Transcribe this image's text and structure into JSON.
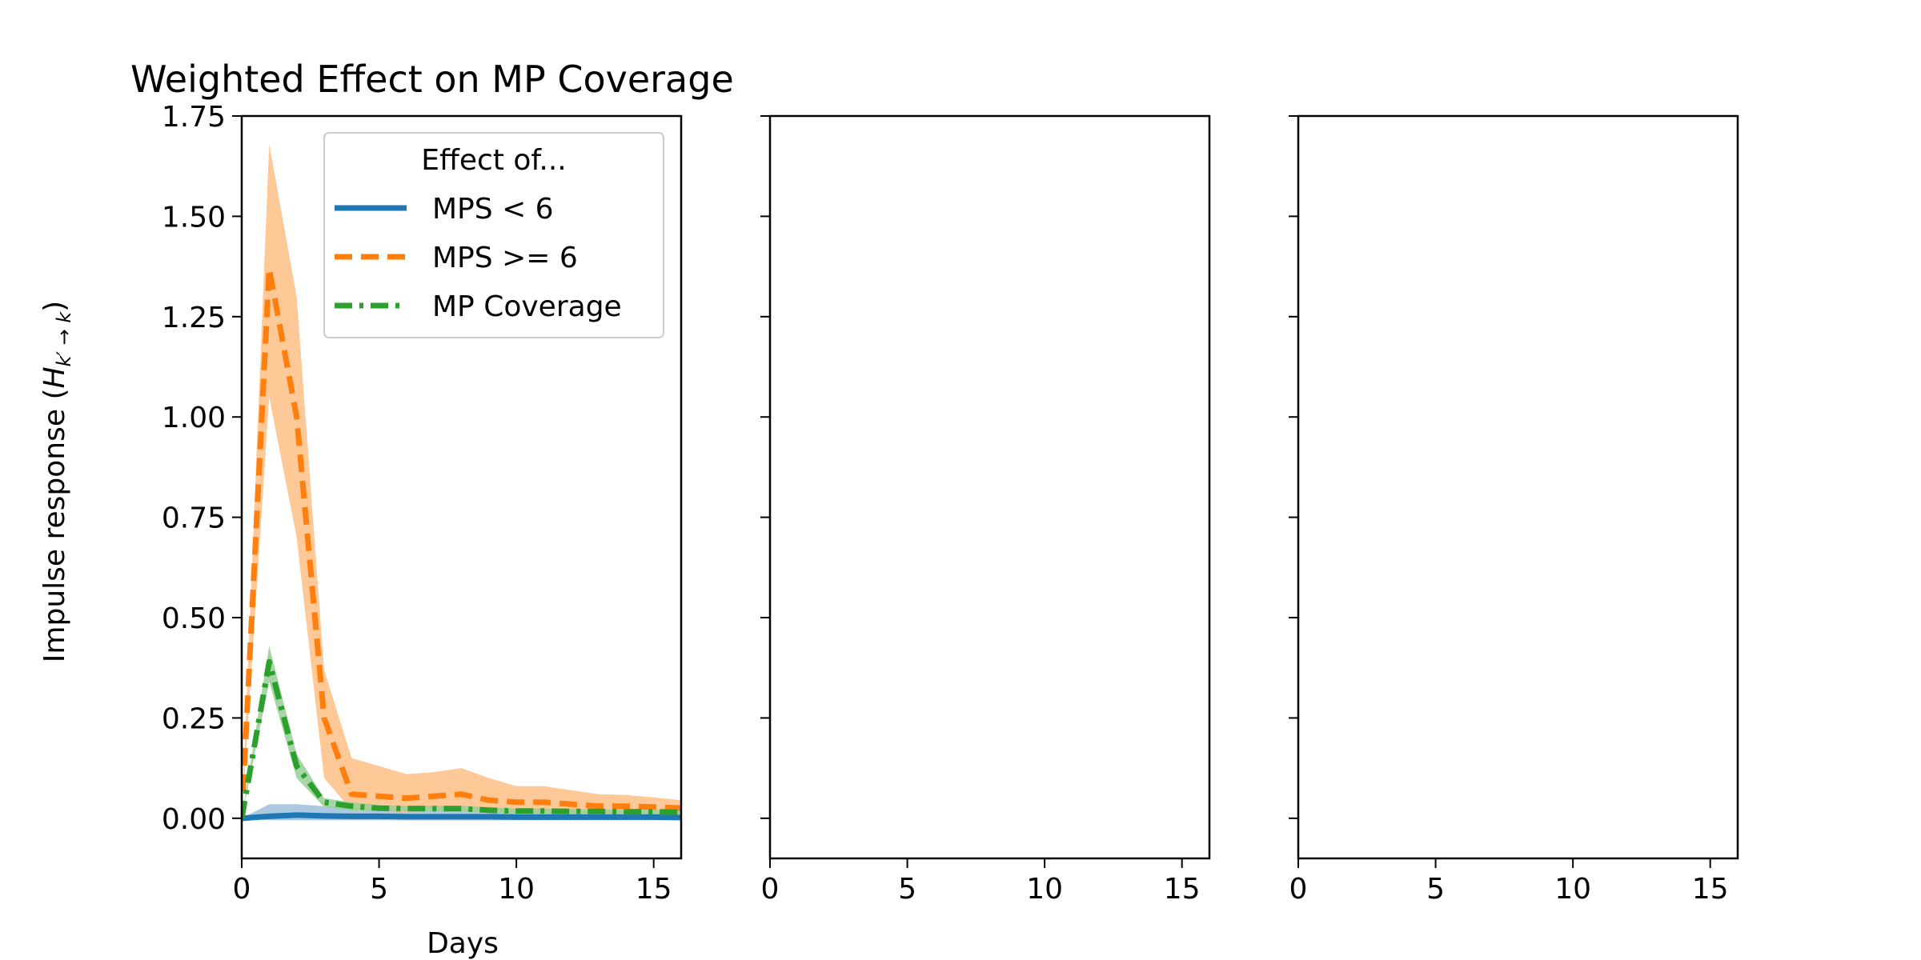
{
  "figure": {
    "ylabel_main": "Impulse response (",
    "ylabel_H": "H",
    "ylabel_sub": "k′ → k",
    "ylabel_close": ")"
  },
  "colors": {
    "blue": "#1f77b4",
    "orange": "#ff7f0e",
    "green": "#2ca02c",
    "blue_band": "#9dbfdd",
    "orange_band": "#ffbe85",
    "green_band": "#96cf96"
  },
  "chart_data": [
    {
      "type": "line",
      "title": "Weighted Effect on MP Coverage",
      "xlabel": "Days",
      "ylabel": "Impulse response (Hk′ → k)",
      "xlim": [
        0,
        16
      ],
      "ylim": [
        -0.1,
        1.75
      ],
      "xticks": [
        0,
        5,
        10,
        15
      ],
      "yticks": [
        0.0,
        0.25,
        0.5,
        0.75,
        1.0,
        1.25,
        1.5,
        1.75
      ],
      "xtick_labels": [
        "0",
        "5",
        "10",
        "15"
      ],
      "ytick_labels": [
        "0.00",
        "0.25",
        "0.50",
        "0.75",
        "1.00",
        "1.25",
        "1.50",
        "1.75"
      ],
      "grid": false,
      "legend": {
        "title": "Effect of...",
        "placement": "upper right",
        "entries": [
          "MPS < 6",
          "MPS >= 6",
          "MP Coverage"
        ]
      },
      "x": [
        0,
        1,
        2,
        3,
        4,
        5,
        6,
        7,
        8,
        9,
        10,
        11,
        12,
        13,
        14,
        15,
        16
      ],
      "series": [
        {
          "name": "MPS < 6",
          "style": "solid",
          "color": "blue",
          "values": [
            0.0,
            0.005,
            0.008,
            0.006,
            0.005,
            0.005,
            0.004,
            0.004,
            0.004,
            0.004,
            0.003,
            0.003,
            0.003,
            0.003,
            0.003,
            0.003,
            0.002
          ],
          "lower": [
            0.0,
            -0.005,
            -0.005,
            -0.005,
            -0.005,
            -0.005,
            -0.005,
            -0.005,
            -0.005,
            -0.005,
            -0.005,
            -0.005,
            -0.005,
            -0.005,
            -0.005,
            -0.005,
            -0.005
          ],
          "upper": [
            0.0,
            0.035,
            0.035,
            0.03,
            0.027,
            0.025,
            0.023,
            0.022,
            0.022,
            0.021,
            0.02,
            0.02,
            0.019,
            0.018,
            0.018,
            0.017,
            0.016
          ]
        },
        {
          "name": "MPS >= 6",
          "style": "dashed",
          "color": "orange",
          "values": [
            0.0,
            1.37,
            1.0,
            0.25,
            0.06,
            0.055,
            0.05,
            0.055,
            0.06,
            0.045,
            0.04,
            0.04,
            0.035,
            0.03,
            0.03,
            0.028,
            0.025
          ],
          "lower": [
            0.0,
            1.05,
            0.7,
            0.1,
            0.02,
            0.018,
            0.015,
            0.018,
            0.02,
            0.015,
            0.013,
            0.013,
            0.012,
            0.01,
            0.01,
            0.01,
            0.008
          ],
          "upper": [
            0.0,
            1.68,
            1.3,
            0.37,
            0.15,
            0.13,
            0.11,
            0.115,
            0.125,
            0.1,
            0.08,
            0.08,
            0.07,
            0.06,
            0.058,
            0.052,
            0.045
          ]
        },
        {
          "name": "MP Coverage",
          "style": "dashdot",
          "color": "green",
          "values": [
            0.0,
            0.39,
            0.13,
            0.04,
            0.03,
            0.025,
            0.024,
            0.024,
            0.024,
            0.02,
            0.018,
            0.018,
            0.017,
            0.017,
            0.016,
            0.016,
            0.015
          ],
          "lower": [
            0.0,
            0.34,
            0.1,
            0.028,
            0.02,
            0.018,
            0.017,
            0.017,
            0.017,
            0.014,
            0.012,
            0.012,
            0.011,
            0.011,
            0.01,
            0.01,
            0.01
          ],
          "upper": [
            0.0,
            0.43,
            0.16,
            0.05,
            0.04,
            0.033,
            0.031,
            0.031,
            0.031,
            0.027,
            0.024,
            0.024,
            0.023,
            0.022,
            0.021,
            0.021,
            0.02
          ]
        }
      ]
    },
    {
      "type": "line",
      "title": "",
      "xlim": [
        0,
        16
      ],
      "ylim": [
        -0.1,
        1.75
      ],
      "xticks": [
        0,
        5,
        10,
        15
      ],
      "xtick_labels": [
        "0",
        "5",
        "10",
        "15"
      ],
      "yticks": [
        0.0,
        0.25,
        0.5,
        0.75,
        1.0,
        1.25,
        1.5,
        1.75
      ],
      "ytick_labels": [],
      "series": []
    },
    {
      "type": "line",
      "title": "",
      "xlim": [
        0,
        16
      ],
      "ylim": [
        -0.1,
        1.75
      ],
      "xticks": [
        0,
        5,
        10,
        15
      ],
      "xtick_labels": [
        "0",
        "5",
        "10",
        "15"
      ],
      "yticks": [
        0.0,
        0.25,
        0.5,
        0.75,
        1.0,
        1.25,
        1.5,
        1.75
      ],
      "ytick_labels": [],
      "series": []
    }
  ]
}
